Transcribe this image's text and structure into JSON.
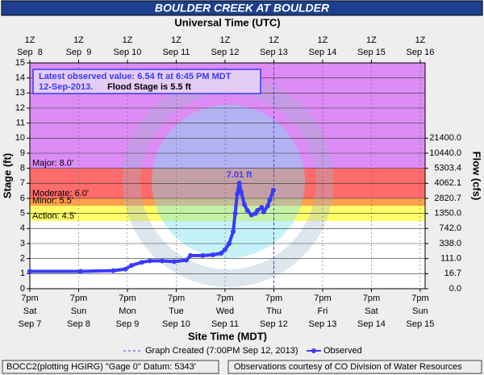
{
  "chart_data": {
    "type": "hydrograph",
    "title": "BOULDER CREEK AT BOULDER",
    "x2_title": "Universal Time (UTC)",
    "x_title": "Site Time (MDT)",
    "y_title": "Stage (ft)",
    "y2_title": "Flow (cfs)",
    "xlim": [
      0,
      194.4
    ],
    "ylim": [
      0,
      15
    ],
    "xticks": [
      {
        "value": 0,
        "label": [
          "7pm",
          "Sat",
          "Sep 7"
        ]
      },
      {
        "value": 24,
        "label": [
          "7pm",
          "Sun",
          "Sep 8"
        ]
      },
      {
        "value": 48,
        "label": [
          "7pm",
          "Mon",
          "Sep 9"
        ]
      },
      {
        "value": 72,
        "label": [
          "7pm",
          "Tue",
          "Sep 10"
        ]
      },
      {
        "value": 96,
        "label": [
          "7pm",
          "Wed",
          "Sep 11"
        ]
      },
      {
        "value": 120,
        "label": [
          "7pm",
          "Thu",
          "Sep 12"
        ]
      },
      {
        "value": 144,
        "label": [
          "7pm",
          "Fri",
          "Sep 13"
        ]
      },
      {
        "value": 168,
        "label": [
          "7pm",
          "Sat",
          "Sep 14"
        ]
      },
      {
        "value": 192,
        "label": [
          "7pm",
          "Sun",
          "Sep 15"
        ]
      }
    ],
    "x2ticks": [
      {
        "value": 0,
        "label": [
          "1Z",
          "Sep  8"
        ]
      },
      {
        "value": 24,
        "label": [
          "1Z",
          "Sep  9"
        ]
      },
      {
        "value": 48,
        "label": [
          "1Z",
          "Sep 10"
        ]
      },
      {
        "value": 72,
        "label": [
          "1Z",
          "Sep 11"
        ]
      },
      {
        "value": 96,
        "label": [
          "1Z",
          "Sep 12"
        ]
      },
      {
        "value": 120,
        "label": [
          "1Z",
          "Sep 13"
        ]
      },
      {
        "value": 144,
        "label": [
          "1Z",
          "Sep 14"
        ]
      },
      {
        "value": 168,
        "label": [
          "1Z",
          "Sep 15"
        ]
      },
      {
        "value": 192,
        "label": [
          "1Z",
          "Sep 16"
        ]
      }
    ],
    "yticks": [
      0,
      1,
      2,
      3,
      4,
      5,
      6,
      7,
      8,
      9,
      10,
      11,
      12,
      13,
      14,
      15
    ],
    "y2ticks": [
      {
        "value": 0,
        "label": "0.0"
      },
      {
        "value": 16.7,
        "label": "16.7"
      },
      {
        "value": 111,
        "label": "111.0"
      },
      {
        "value": 338,
        "label": "338.0"
      },
      {
        "value": 742,
        "label": "742.0"
      },
      {
        "value": 1350,
        "label": "1350.0"
      },
      {
        "value": 2820.7,
        "label": "2820.7"
      },
      {
        "value": 4062.1,
        "label": "4062.1"
      },
      {
        "value": 5303.4,
        "label": "5303.4"
      },
      {
        "value": 10440,
        "label": "10440.0"
      },
      {
        "value": 21400,
        "label": "21400.0"
      }
    ],
    "y2_stage": [
      0,
      1,
      2,
      3,
      4,
      5,
      6,
      7,
      8,
      9,
      10
    ],
    "grid": true,
    "flood_categories": [
      {
        "label": "Major: 8.0'",
        "stage": 8,
        "color": "#dc8cf4"
      },
      {
        "label": "Moderate: 6.0'",
        "stage": 6,
        "color": "#ff6a6a"
      },
      {
        "label": "Minor: 5.5'",
        "stage": 5.5,
        "color": "#ffa04a"
      },
      {
        "label": "Action: 4.5'",
        "stage": 4.5,
        "color": "#ffff66"
      }
    ],
    "series": [
      {
        "name": "Observed",
        "color": "#3a3aff",
        "x": [
          0,
          25,
          41,
          47,
          50,
          55,
          59,
          65,
          71,
          77,
          79,
          85,
          90,
          94,
          96,
          98,
          100,
          101,
          102,
          103,
          104,
          105.5,
          107,
          109,
          111,
          112,
          114,
          115,
          117,
          118,
          119.75
        ],
        "values": [
          1.15,
          1.15,
          1.2,
          1.3,
          1.55,
          1.75,
          1.85,
          1.85,
          1.8,
          1.9,
          2.2,
          2.2,
          2.25,
          2.35,
          2.6,
          3.0,
          3.8,
          5.0,
          6.3,
          7.01,
          6.4,
          5.6,
          5.2,
          4.9,
          5.0,
          5.2,
          5.4,
          5.1,
          5.5,
          5.9,
          6.54
        ]
      }
    ],
    "peak": {
      "x": 103,
      "value": 7.01,
      "label": "7.01 ft"
    },
    "graph_created": {
      "x": 120,
      "label": "Graph Created (7:00PM Sep 12, 2013)"
    },
    "info_box": [
      "Latest observed value: 6.54 ft at 6:45 PM MDT",
      "12-Sep-2013.",
      "Flood Stage is 5.5 ft"
    ],
    "footer_left": "BOCC2(plotting HGIRG) \"Gage 0\" Datum: 5343'",
    "footer_right": "Observations courtesy of CO Division of Water Resources"
  }
}
